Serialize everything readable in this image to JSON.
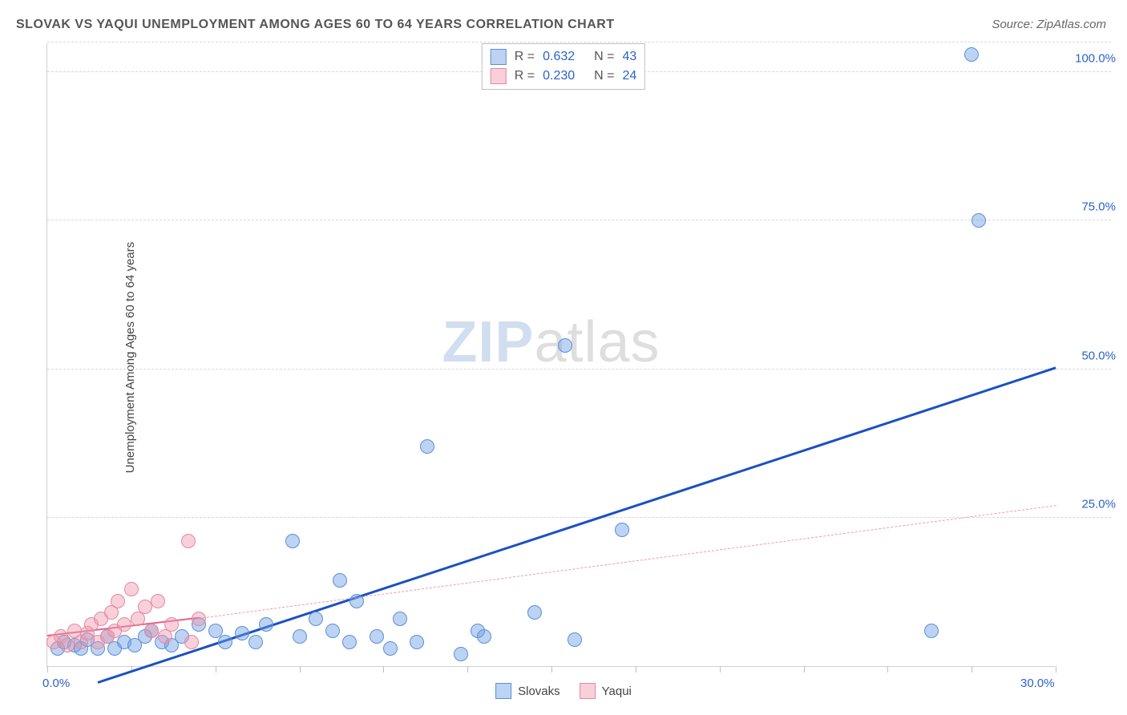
{
  "title": "SLOVAK VS YAQUI UNEMPLOYMENT AMONG AGES 60 TO 64 YEARS CORRELATION CHART",
  "source": "Source: ZipAtlas.com",
  "yaxis_label": "Unemployment Among Ages 60 to 64 years",
  "watermark": {
    "a": "ZIP",
    "b": "atlas"
  },
  "chart": {
    "type": "scatter-with-trend",
    "xlim": [
      0,
      30
    ],
    "ylim": [
      0,
      105
    ],
    "x_ticks": [
      0,
      2.5,
      5,
      7.5,
      10,
      12.5,
      15,
      17.5,
      20,
      22.5,
      25,
      27.5,
      30
    ],
    "x_tick_labels": {
      "0": "0.0%",
      "30": "30.0%"
    },
    "x_tick_color": "#2b62c9",
    "y_gridlines": [
      25,
      50,
      75,
      100,
      105
    ],
    "y_tick_labels": {
      "25": "25.0%",
      "50": "50.0%",
      "75": "75.0%",
      "100": "100.0%"
    },
    "y_tick_color": "#2b62c9",
    "background_color": "#ffffff",
    "grid_color": "#d8d8d8",
    "series": [
      {
        "name": "Slovaks",
        "color_fill": "rgba(108,158,228,0.45)",
        "color_stroke": "#5b8fd6",
        "marker_radius": 9,
        "R": "0.632",
        "N": "43",
        "trend": {
          "x1": 1.5,
          "y1": -3,
          "x2": 30,
          "y2": 50,
          "color": "#1b50c4",
          "width": 3,
          "dash": false
        },
        "points": [
          [
            0.3,
            3
          ],
          [
            0.5,
            4
          ],
          [
            0.8,
            3.5
          ],
          [
            1.0,
            3
          ],
          [
            1.2,
            4.5
          ],
          [
            1.5,
            3
          ],
          [
            1.8,
            5
          ],
          [
            2.0,
            3
          ],
          [
            2.3,
            4
          ],
          [
            2.6,
            3.5
          ],
          [
            2.9,
            5
          ],
          [
            3.1,
            6
          ],
          [
            3.4,
            4
          ],
          [
            3.7,
            3.5
          ],
          [
            4.0,
            5
          ],
          [
            4.5,
            7
          ],
          [
            5.0,
            6
          ],
          [
            5.3,
            4
          ],
          [
            5.8,
            5.5
          ],
          [
            6.2,
            4
          ],
          [
            6.5,
            7
          ],
          [
            7.3,
            21
          ],
          [
            7.5,
            5
          ],
          [
            8.0,
            8
          ],
          [
            8.5,
            6
          ],
          [
            8.7,
            14.5
          ],
          [
            9.0,
            4
          ],
          [
            9.2,
            11
          ],
          [
            9.8,
            5
          ],
          [
            10.2,
            3
          ],
          [
            10.5,
            8
          ],
          [
            11.0,
            4
          ],
          [
            11.3,
            37
          ],
          [
            12.3,
            2
          ],
          [
            12.8,
            6
          ],
          [
            13.0,
            5
          ],
          [
            14.5,
            9
          ],
          [
            15.4,
            54
          ],
          [
            15.7,
            4.5
          ],
          [
            17.1,
            23
          ],
          [
            26.3,
            6
          ],
          [
            27.5,
            103
          ],
          [
            27.7,
            75
          ]
        ]
      },
      {
        "name": "Yaqui",
        "color_fill": "rgba(240,150,170,0.45)",
        "color_stroke": "#e28aa0",
        "marker_radius": 9,
        "R": "0.230",
        "N": "24",
        "trend_solid": {
          "x1": 0,
          "y1": 5,
          "x2": 4.5,
          "y2": 8,
          "color": "#e85f88",
          "width": 2.5,
          "dash": false
        },
        "trend_dash": {
          "x1": 4.5,
          "y1": 8,
          "x2": 30,
          "y2": 27,
          "color": "#e99cb0",
          "width": 1.5,
          "dash": true
        },
        "points": [
          [
            0.2,
            4
          ],
          [
            0.4,
            5
          ],
          [
            0.6,
            3.5
          ],
          [
            0.8,
            6
          ],
          [
            1.0,
            4
          ],
          [
            1.2,
            5.5
          ],
          [
            1.3,
            7
          ],
          [
            1.5,
            4
          ],
          [
            1.6,
            8
          ],
          [
            1.8,
            5
          ],
          [
            1.9,
            9
          ],
          [
            2.0,
            6
          ],
          [
            2.1,
            11
          ],
          [
            2.3,
            7
          ],
          [
            2.5,
            13
          ],
          [
            2.7,
            8
          ],
          [
            2.9,
            10
          ],
          [
            3.1,
            6
          ],
          [
            3.3,
            11
          ],
          [
            3.5,
            5
          ],
          [
            3.7,
            7
          ],
          [
            4.2,
            21
          ],
          [
            4.3,
            4
          ],
          [
            4.5,
            8
          ]
        ]
      }
    ],
    "stat_value_color": "#2b62c9",
    "legend_bottom": [
      "Slovaks",
      "Yaqui"
    ]
  }
}
